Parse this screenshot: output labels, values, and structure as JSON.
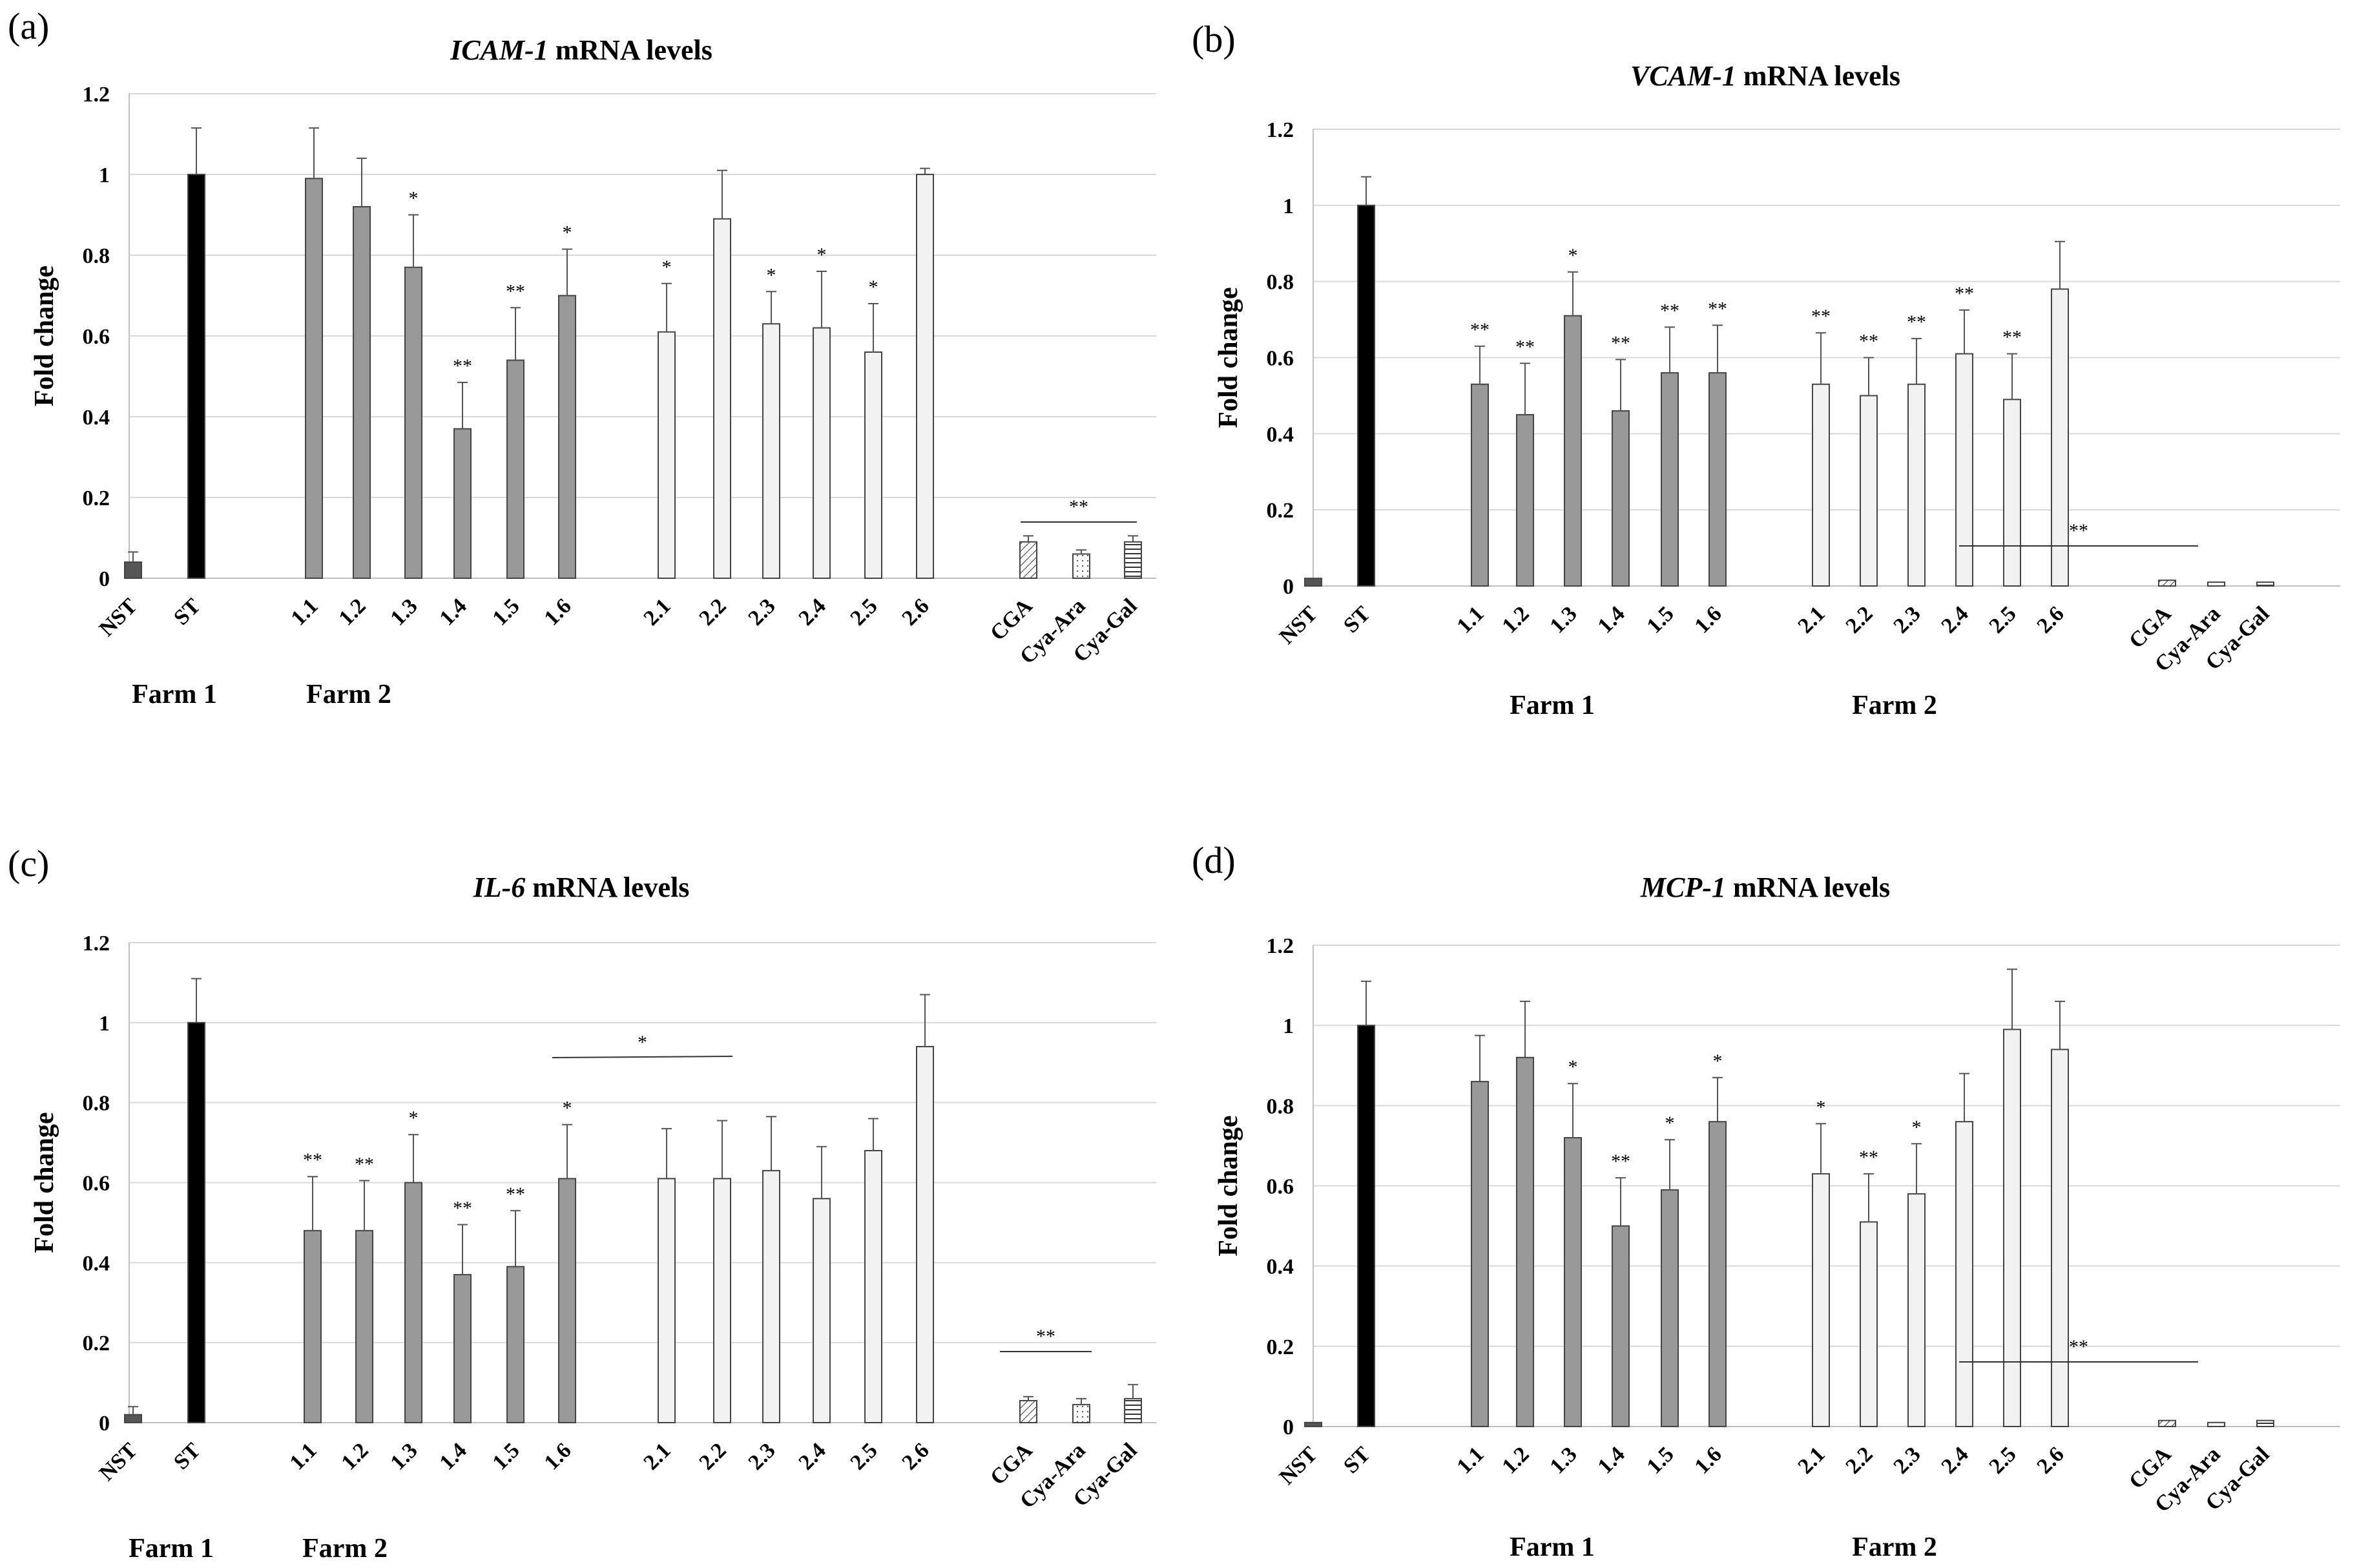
{
  "chart_data": [
    {
      "panel_label": "(a)",
      "title_gene": "ICAM-1",
      "title_suffix": " mRNA levels",
      "type": "bar",
      "ylabel": "Fold change",
      "ylim": [
        0,
        1.2
      ],
      "yticks": [
        0,
        0.2,
        0.4,
        0.6,
        0.8,
        1,
        1.2
      ],
      "ytick_labels": [
        "0",
        "0.2",
        "0.4",
        "0.6",
        "0.8",
        "1",
        "1.2"
      ],
      "grid": true,
      "categories": [
        "NST",
        "ST",
        "1.1",
        "1.2",
        "1.3",
        "1.4",
        "1.5",
        "1.6",
        "2.1",
        "2.2",
        "2.3",
        "2.4",
        "2.5",
        "2.6",
        "CGA",
        "Cya-Ara",
        "Cya-Gal"
      ],
      "values": [
        0.04,
        1.0,
        0.99,
        0.92,
        0.77,
        0.37,
        0.54,
        0.7,
        0.61,
        0.89,
        0.63,
        0.62,
        0.56,
        1.0,
        0.09,
        0.06,
        0.09
      ],
      "errors": [
        0.025,
        0.115,
        0.125,
        0.12,
        0.13,
        0.115,
        0.13,
        0.115,
        0.12,
        0.12,
        0.08,
        0.14,
        0.12,
        0.015,
        0.015,
        0.01,
        0.015
      ],
      "significance": [
        "",
        "",
        "",
        "",
        "*",
        "**",
        "**",
        "*",
        "*",
        "",
        "*",
        "*",
        "*",
        "",
        "",
        "",
        ""
      ],
      "group_labels": [
        "Farm 1",
        "Farm 2"
      ],
      "group_line_label": "**"
    },
    {
      "panel_label": "(b)",
      "title_gene": "VCAM-1",
      "title_suffix": " mRNA levels",
      "type": "bar",
      "ylabel": "Fold change",
      "ylim": [
        0,
        1.2
      ],
      "yticks": [
        0,
        0.2,
        0.4,
        0.6,
        0.8,
        1,
        1.2
      ],
      "ytick_labels": [
        "0",
        "0.2",
        "0.4",
        "0.6",
        "0.8",
        "1",
        "1.2"
      ],
      "grid": true,
      "categories": [
        "NST",
        "ST",
        "1.1",
        "1.2",
        "1.3",
        "1.4",
        "1.5",
        "1.6",
        "2.1",
        "2.2",
        "2.3",
        "2.4",
        "2.5",
        "2.6",
        "CGA",
        "Cya-Ara",
        "Cya-Gal"
      ],
      "values": [
        0.02,
        1.0,
        0.53,
        0.45,
        0.71,
        0.46,
        0.56,
        0.56,
        0.53,
        0.5,
        0.53,
        0.61,
        0.49,
        0.78,
        0.015,
        0.01,
        0.01
      ],
      "errors": [
        0,
        0.075,
        0.1,
        0.135,
        0.115,
        0.135,
        0.12,
        0.125,
        0.135,
        0.1,
        0.12,
        0.115,
        0.12,
        0.125,
        0,
        0,
        0
      ],
      "significance": [
        "",
        "",
        "**",
        "**",
        "*",
        "**",
        "**",
        "**",
        "**",
        "**",
        "**",
        "**",
        "**",
        "",
        "",
        "",
        ""
      ],
      "group_labels": [
        "Farm 1",
        "Farm 2"
      ],
      "group_line_label": "**"
    },
    {
      "panel_label": "(c)",
      "title_gene": "IL-6",
      "title_suffix": " mRNA levels",
      "type": "bar",
      "ylabel": "Fold change",
      "ylim": [
        0,
        1.2
      ],
      "yticks": [
        0,
        0.2,
        0.4,
        0.6,
        0.8,
        1,
        1.2
      ],
      "ytick_labels": [
        "0",
        "0.2",
        "0.4",
        "0.6",
        "0.8",
        "1",
        "1.2"
      ],
      "grid": true,
      "categories": [
        "NST",
        "ST",
        "1.1",
        "1.2",
        "1.3",
        "1.4",
        "1.5",
        "1.6",
        "2.1",
        "2.2",
        "2.3",
        "2.4",
        "2.5",
        "2.6",
        "CGA",
        "Cya-Ara",
        "Cya-Gal"
      ],
      "values": [
        0.02,
        1.0,
        0.48,
        0.48,
        0.6,
        0.37,
        0.39,
        0.61,
        0.61,
        0.61,
        0.63,
        0.56,
        0.68,
        0.94,
        0.055,
        0.045,
        0.06
      ],
      "errors": [
        0.02,
        0.11,
        0.135,
        0.125,
        0.12,
        0.125,
        0.14,
        0.135,
        0.125,
        0.145,
        0.135,
        0.13,
        0.08,
        0.13,
        0.01,
        0.015,
        0.035
      ],
      "significance": [
        "",
        "",
        "**",
        "**",
        "*",
        "**",
        "**",
        "*",
        "",
        "",
        "",
        "",
        "",
        "",
        "",
        "",
        ""
      ],
      "group_labels": [
        "Farm 1",
        "Farm 2"
      ],
      "group_line_label": "**",
      "farm2_line_label": "*"
    },
    {
      "panel_label": "(d)",
      "title_gene": "MCP-1",
      "title_suffix": " mRNA levels",
      "type": "bar",
      "ylabel": "Fold change",
      "ylim": [
        0,
        1.2
      ],
      "yticks": [
        0,
        0.2,
        0.4,
        0.6,
        0.8,
        1,
        1.2
      ],
      "ytick_labels": [
        "0",
        "0.2",
        "0.4",
        "0.6",
        "0.8",
        "1",
        "1.2"
      ],
      "grid": true,
      "categories": [
        "NST",
        "ST",
        "1.1",
        "1.2",
        "1.3",
        "1.4",
        "1.5",
        "1.6",
        "2.1",
        "2.2",
        "2.3",
        "2.4",
        "2.5",
        "2.6",
        "CGA",
        "Cya-Ara",
        "Cya-Gal"
      ],
      "values": [
        0.01,
        1.0,
        0.86,
        0.92,
        0.72,
        0.5,
        0.59,
        0.76,
        0.63,
        0.51,
        0.58,
        0.76,
        0.99,
        0.94,
        0.015,
        0.01,
        0.015
      ],
      "errors": [
        0,
        0.11,
        0.115,
        0.14,
        0.135,
        0.12,
        0.125,
        0.11,
        0.125,
        0.12,
        0.125,
        0.12,
        0.15,
        0.12,
        0,
        0,
        0
      ],
      "significance": [
        "",
        "",
        "",
        "",
        "*",
        "**",
        "*",
        "*",
        "*",
        "**",
        "*",
        "",
        "",
        "",
        "",
        "",
        ""
      ],
      "group_labels": [
        "Farm 1",
        "Farm 2"
      ],
      "group_line_label": "**"
    }
  ],
  "colors": {
    "nst": "#555555",
    "st": "#000000",
    "farm1": "#999999",
    "farm2": "#f2f2f2",
    "std": "#ffffff",
    "grid": "#d9d9d9",
    "axis": "#bfbfbf",
    "outline": "#444444"
  }
}
